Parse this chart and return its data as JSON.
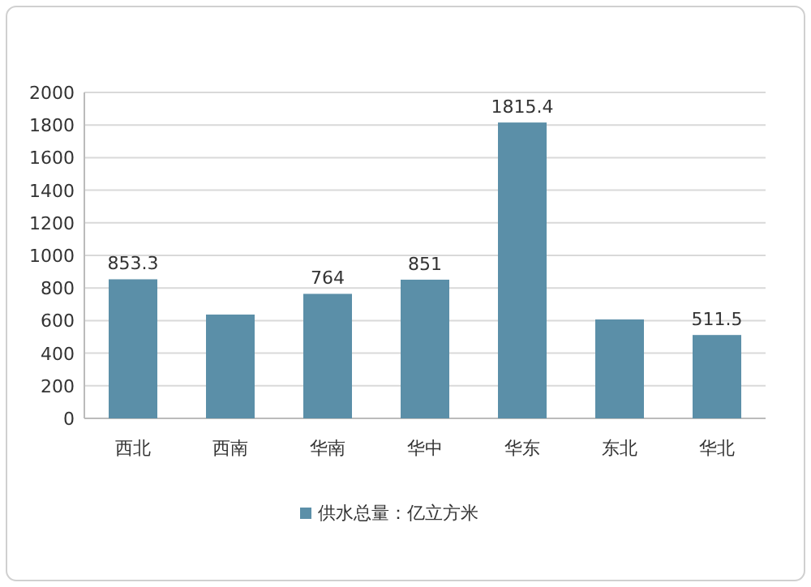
{
  "chart_data": {
    "type": "bar",
    "categories": [
      "西北",
      "西南",
      "华南",
      "华中",
      "华东",
      "东北",
      "华北"
    ],
    "series": [
      {
        "name": "供水总量：亿立方米",
        "color": "#5b8fa8",
        "values": [
          853.3,
          637,
          764,
          851,
          1815.4,
          607,
          511.5
        ],
        "value_labels": [
          "853.3",
          null,
          "764",
          "851",
          "1815.4",
          null,
          "511.5"
        ]
      }
    ],
    "ylim": [
      0,
      2000
    ],
    "yticks": [
      0,
      200,
      400,
      600,
      800,
      1000,
      1200,
      1400,
      1600,
      1800,
      2000
    ],
    "grid": "y",
    "legend": "bottom"
  }
}
